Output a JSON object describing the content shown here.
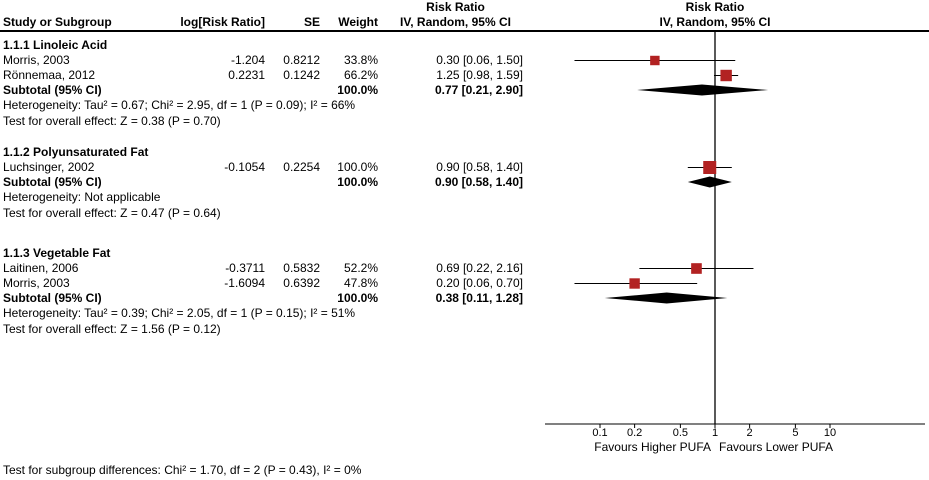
{
  "header": {
    "effect": "Risk Ratio",
    "study": "Study or Subgroup",
    "log_rr": "log[Risk Ratio]",
    "se": "SE",
    "weight": "Weight",
    "model": "IV, Random, 95% CI"
  },
  "colors": {
    "square": "#B22222",
    "diamond": "#000000",
    "axis": "#000000"
  },
  "chart_data": {
    "type": "forest",
    "effect_measure": "Risk Ratio",
    "model": "IV, Random, 95% CI",
    "subgroups": [
      {
        "title": "1.1.1 Linoleic Acid",
        "studies": [
          {
            "name": "Morris, 2003",
            "log_rr": "-1.204",
            "se": "0.8212",
            "weight": "33.8%",
            "weight_value": 33.8,
            "ci_text": "0.30 [0.06, 1.50]",
            "point": 0.3,
            "lo": 0.06,
            "hi": 1.5
          },
          {
            "name": "Rönnemaa, 2012",
            "log_rr": "0.2231",
            "se": "0.1242",
            "weight": "66.2%",
            "weight_value": 66.2,
            "ci_text": "1.25 [0.98, 1.59]",
            "point": 1.25,
            "lo": 0.98,
            "hi": 1.59
          }
        ],
        "subtotal": {
          "label": "Subtotal (95% CI)",
          "weight": "100.0%",
          "ci_text": "0.77 [0.21, 2.90]",
          "point": 0.77,
          "lo": 0.21,
          "hi": 2.9
        },
        "heterogeneity": "Heterogeneity: Tau² = 0.67; Chi² = 2.95, df = 1 (P = 0.09); I² = 66%",
        "overall_effect": "Test for overall effect: Z = 0.38 (P = 0.70)"
      },
      {
        "title": "1.1.2 Polyunsaturated Fat",
        "studies": [
          {
            "name": "Luchsinger, 2002",
            "log_rr": "-0.1054",
            "se": "0.2254",
            "weight": "100.0%",
            "weight_value": 100.0,
            "ci_text": "0.90 [0.58, 1.40]",
            "point": 0.9,
            "lo": 0.58,
            "hi": 1.4
          }
        ],
        "subtotal": {
          "label": "Subtotal (95% CI)",
          "weight": "100.0%",
          "ci_text": "0.90 [0.58, 1.40]",
          "point": 0.9,
          "lo": 0.58,
          "hi": 1.4
        },
        "heterogeneity": "Heterogeneity: Not applicable",
        "overall_effect": "Test for overall effect: Z = 0.47 (P = 0.64)"
      },
      {
        "title": "1.1.3 Vegetable Fat",
        "studies": [
          {
            "name": "Laitinen, 2006",
            "log_rr": "-0.3711",
            "se": "0.5832",
            "weight": "52.2%",
            "weight_value": 52.2,
            "ci_text": "0.69 [0.22, 2.16]",
            "point": 0.69,
            "lo": 0.22,
            "hi": 2.16
          },
          {
            "name": "Morris, 2003",
            "log_rr": "-1.6094",
            "se": "0.6392",
            "weight": "47.8%",
            "weight_value": 47.8,
            "ci_text": "0.20 [0.06, 0.70]",
            "point": 0.2,
            "lo": 0.06,
            "hi": 0.7
          }
        ],
        "subtotal": {
          "label": "Subtotal (95% CI)",
          "weight": "100.0%",
          "ci_text": "0.38 [0.11, 1.28]",
          "point": 0.38,
          "lo": 0.11,
          "hi": 1.28
        },
        "heterogeneity": "Heterogeneity: Tau² = 0.39; Chi² = 2.05, df = 1 (P = 0.15); I² = 51%",
        "overall_effect": "Test for overall effect: Z = 1.56 (P = 0.12)"
      }
    ],
    "axis": {
      "scale": "log",
      "ticks": [
        0.1,
        0.2,
        0.5,
        1,
        2,
        5,
        10
      ],
      "null_value": 1,
      "left_label": "Favours Higher PUFA",
      "right_label": "Favours Lower PUFA"
    },
    "footer": "Test for subgroup differences: Chi² = 1.70, df = 2 (P = 0.43), I² = 0%"
  }
}
